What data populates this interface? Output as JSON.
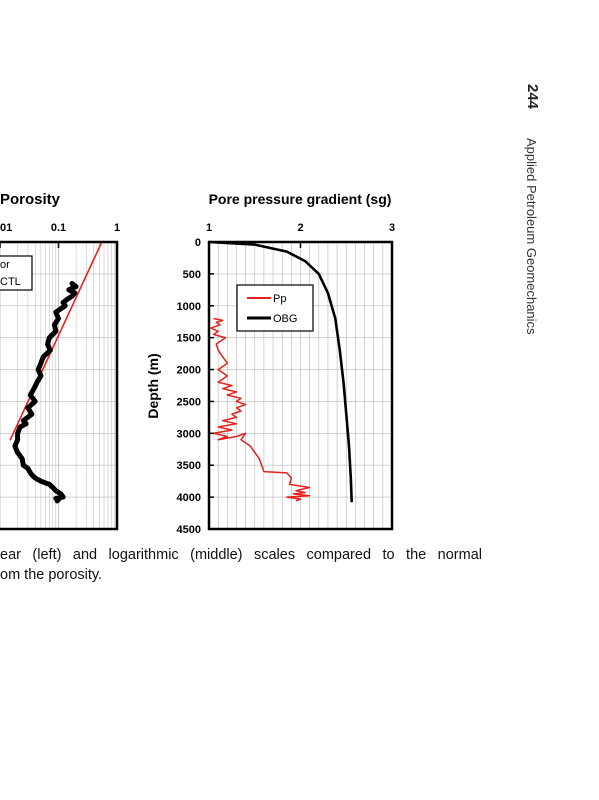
{
  "page": {
    "number": "244",
    "book_title": "Applied Petroleum Geomechanics",
    "caption_line1": "ear (left) and logarithmic (middle) scales compared to the normal",
    "caption_line2": "om the porosity."
  },
  "colors": {
    "red": "#e8211b",
    "black": "#000000",
    "grid": "#b8b8b8"
  },
  "chart_data": [
    {
      "type": "line",
      "title": "Porosity",
      "x_scale": "log",
      "x_tick_labels": [
        "01",
        "0.1",
        "1"
      ],
      "xlim": [
        0.01,
        1
      ],
      "ylim": [
        0,
        4500
      ],
      "grid": true,
      "legend": {
        "placement": "top-left",
        "entries": [
          "or",
          "CTL"
        ]
      },
      "series": [
        {
          "name": "or",
          "color": "#e8211b",
          "x": [
            0.015,
            0.55
          ],
          "y": [
            3100,
            0
          ]
        },
        {
          "name": "CTL",
          "color": "#000000",
          "x": [
            0.17,
            0.2,
            0.15,
            0.19,
            0.17,
            0.14,
            0.12,
            0.13,
            0.09,
            0.1,
            0.085,
            0.09,
            0.07,
            0.065,
            0.072,
            0.055,
            0.05,
            0.045,
            0.05,
            0.043,
            0.038,
            0.033,
            0.04,
            0.03,
            0.035,
            0.025,
            0.028,
            0.022,
            0.02,
            0.02,
            0.018,
            0.02,
            0.024,
            0.025,
            0.03,
            0.032,
            0.035,
            0.04,
            0.05,
            0.07,
            0.08,
            0.09,
            0.11,
            0.12,
            0.09,
            0.1,
            0.095
          ],
          "y": [
            650,
            700,
            750,
            800,
            850,
            900,
            950,
            1000,
            1100,
            1200,
            1300,
            1400,
            1500,
            1600,
            1700,
            1800,
            1900,
            2000,
            2100,
            2200,
            2300,
            2400,
            2500,
            2600,
            2700,
            2800,
            2850,
            2900,
            3000,
            3100,
            3200,
            3300,
            3400,
            3500,
            3550,
            3600,
            3650,
            3700,
            3750,
            3800,
            3850,
            3900,
            3950,
            4000,
            4020,
            4040,
            4060
          ]
        }
      ]
    },
    {
      "type": "line",
      "title": "Pore pressure gradient (sg)",
      "xlabel": "",
      "ylabel": "Depth (m)",
      "x_ticks": [
        1,
        2,
        3
      ],
      "y_ticks": [
        0,
        500,
        1000,
        1500,
        2000,
        2500,
        3000,
        3500,
        4000,
        4500
      ],
      "xlim": [
        1,
        3
      ],
      "ylim": [
        0,
        4500
      ],
      "grid": true,
      "legend": {
        "placement": "top-center",
        "entries": [
          "Pp",
          "OBG"
        ]
      },
      "series": [
        {
          "name": "Pp",
          "color": "#e8211b",
          "x": [
            1.05,
            1.15,
            1.08,
            1.12,
            1.02,
            1.1,
            1.05,
            1.18,
            1.08,
            1.1,
            1.15,
            1.2,
            1.1,
            1.2,
            1.1,
            1.25,
            1.15,
            1.3,
            1.2,
            1.35,
            1.3,
            1.4,
            1.3,
            1.35,
            1.25,
            1.3,
            1.15,
            1.3,
            1.1,
            1.25,
            1.05,
            1.2,
            1.1,
            1.3,
            1.4,
            1.35,
            1.45,
            1.5,
            1.55,
            1.6,
            1.85,
            1.9,
            1.88,
            2.1,
            1.95,
            2.05,
            1.92,
            2.1,
            1.85,
            2.0,
            1.95
          ],
          "y": [
            1200,
            1230,
            1260,
            1300,
            1350,
            1400,
            1450,
            1500,
            1600,
            1700,
            1800,
            1900,
            2000,
            2100,
            2200,
            2250,
            2300,
            2350,
            2400,
            2450,
            2500,
            2550,
            2600,
            2650,
            2700,
            2750,
            2800,
            2850,
            2900,
            2950,
            3000,
            3050,
            3100,
            3050,
            3000,
            3100,
            3200,
            3300,
            3400,
            3600,
            3620,
            3700,
            3800,
            3850,
            3900,
            3930,
            3950,
            3980,
            4000,
            4030,
            4060
          ]
        },
        {
          "name": "OBG",
          "color": "#000000",
          "x": [
            1.0,
            1.5,
            1.85,
            2.05,
            2.2,
            2.3,
            2.38,
            2.43,
            2.47,
            2.5,
            2.53,
            2.55,
            2.56
          ],
          "y": [
            0,
            40,
            150,
            300,
            500,
            800,
            1200,
            1700,
            2200,
            2700,
            3200,
            3700,
            4080
          ]
        }
      ]
    }
  ]
}
